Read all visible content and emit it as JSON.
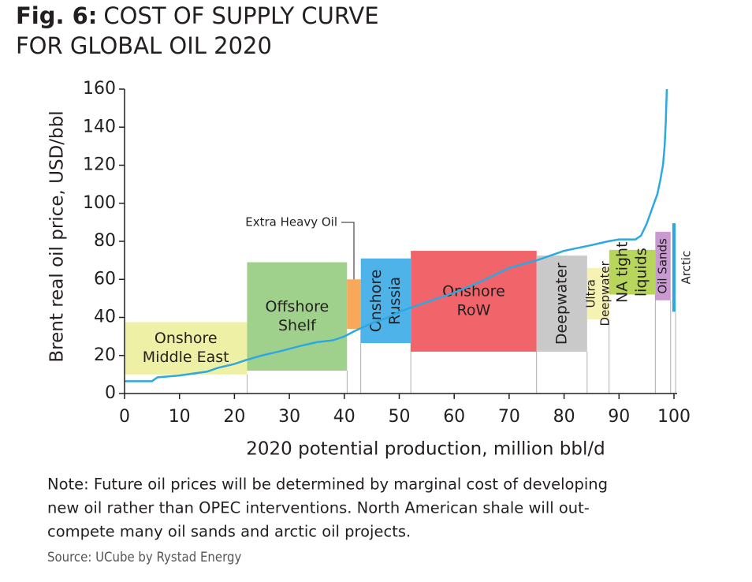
{
  "chart_data": {
    "type": "supply-curve",
    "figure_label": "Fig. 6:",
    "title": [
      "COST OF SUPPLY CURVE",
      "FOR GLOBAL OIL 2020"
    ],
    "xlabel": "2020 potential production, million bbl/d",
    "ylabel": "Brent real oil price, USD/bbl",
    "xlim": [
      0,
      100
    ],
    "xticks": [
      0,
      10,
      20,
      30,
      40,
      50,
      60,
      70,
      80,
      90,
      100
    ],
    "ylim": [
      0,
      160
    ],
    "yticks": [
      0,
      20,
      40,
      60,
      80,
      100,
      120,
      140,
      160
    ],
    "grid": false,
    "segments": [
      {
        "label": [
          "Onshore",
          "Middle East"
        ],
        "x": [
          0,
          22.3
        ],
        "y": [
          10,
          37.5
        ],
        "color": "#eef0a6",
        "rotated": false
      },
      {
        "label": [
          "Offshore",
          "Shelf"
        ],
        "x": [
          22.3,
          40.5
        ],
        "y": [
          12,
          69
        ],
        "color": "#9fd18d",
        "rotated": false
      },
      {
        "label": [
          "Extra Heavy Oil"
        ],
        "x": [
          40.5,
          43
        ],
        "y": [
          34,
          60
        ],
        "color": "#f7a858",
        "rotated": false,
        "callout": true
      },
      {
        "label": [
          "Onshore",
          "Russia"
        ],
        "x": [
          43,
          52.1
        ],
        "y": [
          26.5,
          71
        ],
        "color": "#4db3e8",
        "rotated": true
      },
      {
        "label": [
          "Onshore",
          "RoW"
        ],
        "x": [
          52.1,
          75
        ],
        "y": [
          22,
          75
        ],
        "color": "#f0646a",
        "rotated": false
      },
      {
        "label": [
          "Deepwater"
        ],
        "x": [
          75,
          84.2
        ],
        "y": [
          22,
          72.5
        ],
        "color": "#c9c9c9",
        "rotated": true
      },
      {
        "label": [
          "Ultra",
          "Deepwater"
        ],
        "x": [
          84.2,
          88.2
        ],
        "y": [
          39,
          66
        ],
        "color": "#f6f2b4",
        "rotated": true
      },
      {
        "label": [
          "NA tight",
          "liquids"
        ],
        "x": [
          88.2,
          96.6
        ],
        "y": [
          52,
          75.5
        ],
        "color": "#b8d65c",
        "rotated": true
      },
      {
        "label": [
          "Oil Sands"
        ],
        "x": [
          96.6,
          99.4
        ],
        "y": [
          49,
          85
        ],
        "color": "#c99ad2",
        "rotated": true
      },
      {
        "label": [
          "Arctic"
        ],
        "x": [
          99.7,
          100.3
        ],
        "y": [
          43,
          89.5
        ],
        "color": "#2fa6e0",
        "rotated": true,
        "label_side": "right"
      }
    ],
    "series": [
      {
        "name": "Cost of supply",
        "color": "#2ea8e0",
        "x": [
          0,
          5,
          6,
          10,
          15,
          17,
          20,
          22,
          25,
          28,
          32,
          35,
          38,
          40,
          42,
          45,
          48,
          50,
          55,
          60,
          65,
          70,
          75,
          78,
          80,
          85,
          88,
          90,
          93,
          94,
          95,
          96,
          97,
          97.5,
          98,
          98.3,
          98.5,
          98.7
        ],
        "values": [
          6.5,
          6.5,
          8.5,
          9.5,
          11.5,
          13.5,
          15.5,
          17.5,
          20,
          22,
          25,
          27,
          28,
          30,
          33,
          37,
          40,
          43,
          48,
          53,
          59,
          66,
          70,
          73,
          75,
          78,
          80,
          81,
          81,
          83,
          89,
          97,
          105,
          112,
          120,
          130,
          142,
          160
        ]
      }
    ],
    "note": [
      "Note: Future oil prices will be determined by marginal cost of developing",
      "new oil rather than OPEC interventions. North American shale will out-",
      "compete many oil sands and arctic oil projects."
    ],
    "source": "Source:  UCube by Rystad Energy"
  }
}
